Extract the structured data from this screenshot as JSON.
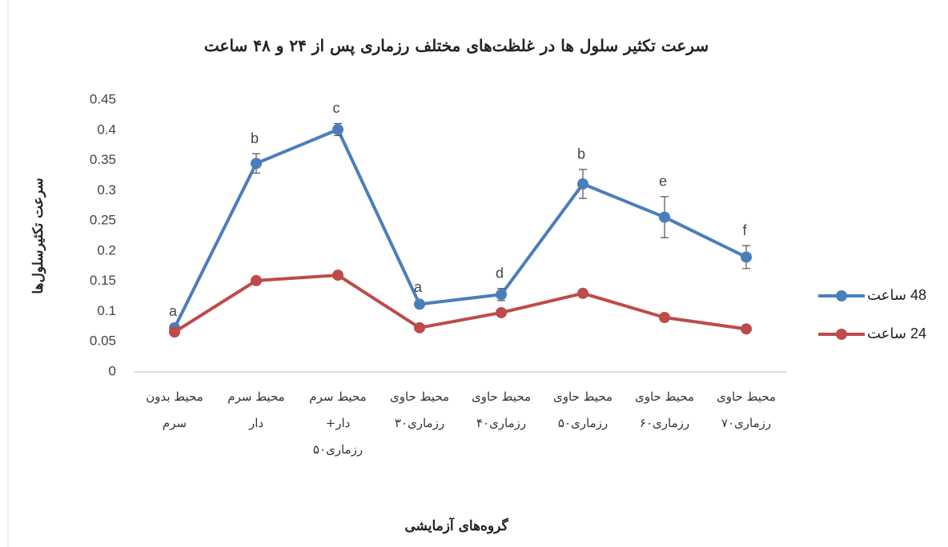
{
  "chart_data": {
    "type": "line",
    "title": "سرعت تکثیر سلول ها در غلظت‌های مختلف رزماری پس از ۲۴ و ۴۸ ساعت",
    "y_label": "سرعت تکثیرسلول‌ها",
    "x_label": "گروه‌های آزمایشی",
    "categories": [
      "محیط بدون سرم",
      "محیط سرم دار",
      "محیط سرم دار+ رزماری۵۰",
      "محیط حاوی رزماری۳۰",
      "محیط حاوی رزماری۴۰",
      "محیط حاوی رزماری۵۰",
      "محیط حاوی رزماری۶۰",
      "محیط حاوی رزماری۷۰"
    ],
    "series": [
      {
        "name": "48 ساعت",
        "color": "#4a7ebb",
        "values": [
          0.073,
          0.345,
          0.401,
          0.112,
          0.128,
          0.311,
          0.256,
          0.19
        ],
        "errors": [
          0.002,
          0.016,
          0.01,
          0.003,
          0.01,
          0.024,
          0.034,
          0.019
        ],
        "annotations": [
          "a",
          "b",
          "c",
          "a",
          "d",
          "b",
          "e",
          "f"
        ]
      },
      {
        "name": "24 ساعت",
        "color": "#be4b48",
        "values": [
          0.066,
          0.151,
          0.16,
          0.073,
          0.098,
          0.13,
          0.09,
          0.071
        ]
      }
    ],
    "ylim": [
      0,
      0.45
    ],
    "yticks": [
      0,
      0.05,
      0.1,
      0.15,
      0.2,
      0.25,
      0.3,
      0.35,
      0.4,
      0.45
    ],
    "grid": false,
    "legend": "right"
  }
}
